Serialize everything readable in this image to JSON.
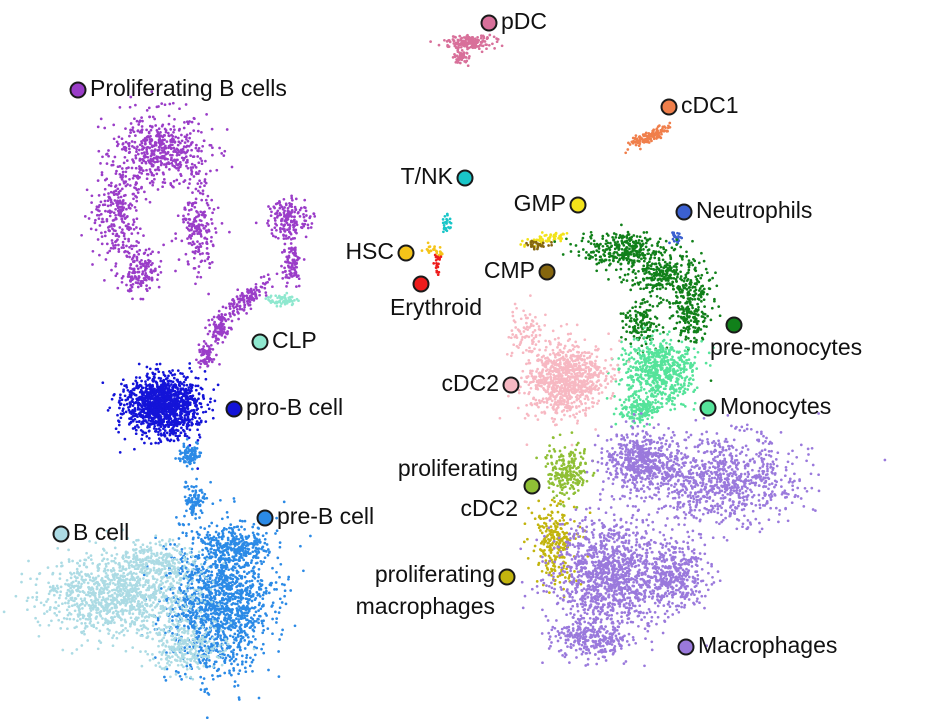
{
  "chart_data": {
    "type": "scatter",
    "title": "",
    "xlabel": "",
    "ylabel": "",
    "grid": false,
    "clusters": [
      {
        "key": "pdc",
        "label": "pDC",
        "color": "#d8709a"
      },
      {
        "key": "prolif_b",
        "label": "Proliferating B cells",
        "color": "#9a3dc8"
      },
      {
        "key": "cdc1",
        "label": "cDC1",
        "color": "#f07f4b"
      },
      {
        "key": "tnk",
        "label": "T/NK",
        "color": "#19c6c8"
      },
      {
        "key": "gmp",
        "label": "GMP",
        "color": "#f2e21a"
      },
      {
        "key": "neutrophils",
        "label": "Neutrophils",
        "color": "#3b60d0"
      },
      {
        "key": "hsc",
        "label": "HSC",
        "color": "#f5c419"
      },
      {
        "key": "cmp",
        "label": "CMP",
        "color": "#85660e"
      },
      {
        "key": "erythroid",
        "label": "Erythroid",
        "color": "#ee1c1c"
      },
      {
        "key": "clp",
        "label": "CLP",
        "color": "#8fe8cf"
      },
      {
        "key": "pre_mono",
        "label": "pre-monocytes",
        "color": "#11801a"
      },
      {
        "key": "cdc2",
        "label": "cDC2",
        "color": "#f7b8c2"
      },
      {
        "key": "pro_b",
        "label": "pro-B cell",
        "color": "#1414d8"
      },
      {
        "key": "monocytes",
        "label": "Monocytes",
        "color": "#55e39a"
      },
      {
        "key": "prolif_cdc2",
        "label": "proliferating cDC2",
        "label_lines": [
          "proliferating",
          "cDC2"
        ],
        "color": "#8fbf35"
      },
      {
        "key": "pre_b",
        "label": "pre-B cell",
        "color": "#2b8ae6"
      },
      {
        "key": "b_cell",
        "label": "B cell",
        "color": "#acdbe4"
      },
      {
        "key": "prolif_macro",
        "label": "proliferating macrophages",
        "label_lines": [
          "proliferating",
          "macrophages"
        ],
        "color": "#c2b40e"
      },
      {
        "key": "macrophages",
        "label": "Macrophages",
        "color": "#9a79dc"
      }
    ]
  }
}
